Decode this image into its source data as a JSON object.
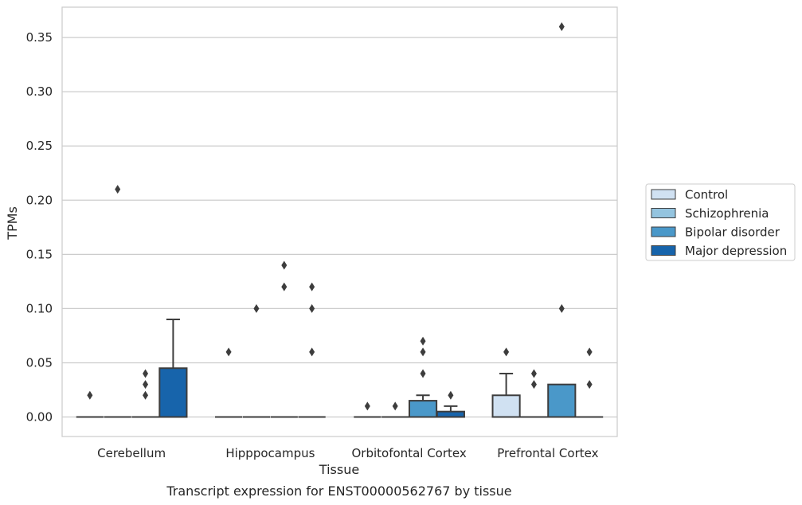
{
  "chart_data": {
    "type": "box",
    "caption": "Transcript expression for ENST00000562767 by tissue",
    "xlabel": "Tissue",
    "ylabel": "TPMs",
    "ylim": [
      -0.018,
      0.378
    ],
    "yticks": [
      "0.00",
      "0.05",
      "0.10",
      "0.15",
      "0.20",
      "0.25",
      "0.30",
      "0.35"
    ],
    "categories": [
      "Cerebellum",
      "Hipppocampus",
      "Orbitofontal Cortex",
      "Prefrontal Cortex"
    ],
    "grid": "horizontal",
    "legend_position": "right, outside plot",
    "series": [
      {
        "name": "Control",
        "color": "#d0e1f2"
      },
      {
        "name": "Schizophrenia",
        "color": "#94c4df"
      },
      {
        "name": "Bipolar disorder",
        "color": "#4a98c9"
      },
      {
        "name": "Major depression",
        "color": "#1764ab"
      }
    ],
    "boxes": [
      [
        {
          "q1": 0,
          "median": 0,
          "q3": 0,
          "whisker_low": 0,
          "whisker_high": 0,
          "outliers": [
            0.02
          ]
        },
        {
          "q1": 0,
          "median": 0,
          "q3": 0,
          "whisker_low": 0,
          "whisker_high": 0,
          "outliers": [
            0.21
          ]
        },
        {
          "q1": 0,
          "median": 0,
          "q3": 0,
          "whisker_low": 0,
          "whisker_high": 0,
          "outliers": [
            0.02,
            0.03,
            0.04
          ]
        },
        {
          "q1": 0,
          "median": 0,
          "q3": 0.045,
          "whisker_low": 0,
          "whisker_high": 0.09,
          "outliers": []
        }
      ],
      [
        {
          "q1": 0,
          "median": 0,
          "q3": 0,
          "whisker_low": 0,
          "whisker_high": 0,
          "outliers": [
            0.06
          ]
        },
        {
          "q1": 0,
          "median": 0,
          "q3": 0,
          "whisker_low": 0,
          "whisker_high": 0,
          "outliers": [
            0.1
          ]
        },
        {
          "q1": 0,
          "median": 0,
          "q3": 0,
          "whisker_low": 0,
          "whisker_high": 0,
          "outliers": [
            0.12,
            0.14
          ]
        },
        {
          "q1": 0,
          "median": 0,
          "q3": 0,
          "whisker_low": 0,
          "whisker_high": 0,
          "outliers": [
            0.06,
            0.1,
            0.12
          ]
        }
      ],
      [
        {
          "q1": 0,
          "median": 0,
          "q3": 0,
          "whisker_low": 0,
          "whisker_high": 0,
          "outliers": [
            0.01
          ]
        },
        {
          "q1": 0,
          "median": 0,
          "q3": 0,
          "whisker_low": 0,
          "whisker_high": 0,
          "outliers": [
            0.01
          ]
        },
        {
          "q1": 0,
          "median": 0,
          "q3": 0.015,
          "whisker_low": 0,
          "whisker_high": 0.02,
          "outliers": [
            0.04,
            0.06,
            0.07
          ]
        },
        {
          "q1": 0,
          "median": 0,
          "q3": 0.005,
          "whisker_low": 0,
          "whisker_high": 0.01,
          "outliers": [
            0.02
          ]
        }
      ],
      [
        {
          "q1": 0,
          "median": 0,
          "q3": 0.02,
          "whisker_low": 0,
          "whisker_high": 0.04,
          "outliers": [
            0.06
          ]
        },
        {
          "q1": 0,
          "median": 0,
          "q3": 0,
          "whisker_low": 0,
          "whisker_high": 0,
          "outliers": [
            0.03,
            0.04
          ]
        },
        {
          "q1": 0,
          "median": 0,
          "q3": 0.03,
          "whisker_low": 0,
          "whisker_high": 0.03,
          "outliers": [
            0.1,
            0.36
          ]
        },
        {
          "q1": 0,
          "median": 0,
          "q3": 0,
          "whisker_low": 0,
          "whisker_high": 0,
          "outliers": [
            0.03,
            0.06
          ]
        }
      ]
    ]
  }
}
